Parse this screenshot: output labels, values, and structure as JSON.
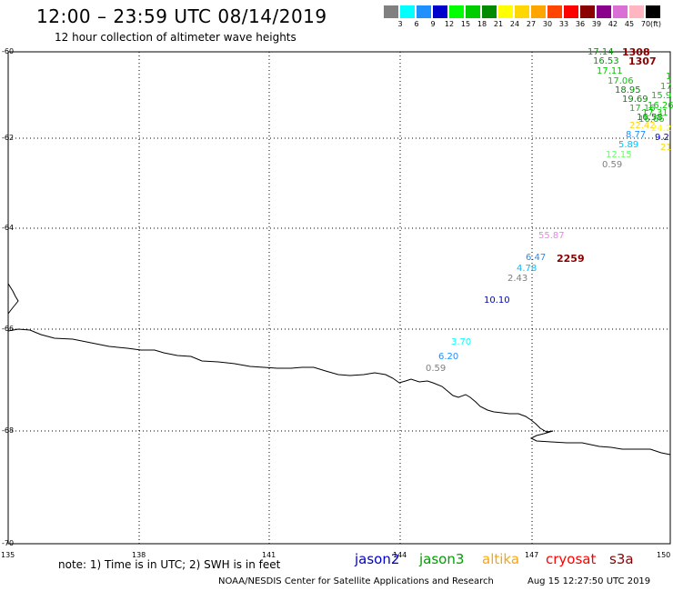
{
  "header": {
    "title": "12:00 – 23:59 UTC 08/14/2019",
    "subtitle": "12 hour collection of altimeter wave heights"
  },
  "legend": {
    "unit": "(ft)",
    "items": [
      {
        "label": "3",
        "color": "#808080"
      },
      {
        "label": "6",
        "color": "#00ffff"
      },
      {
        "label": "9",
        "color": "#1e90ff"
      },
      {
        "label": "12",
        "color": "#0000cd"
      },
      {
        "label": "15",
        "color": "#00ff00"
      },
      {
        "label": "18",
        "color": "#00cd00"
      },
      {
        "label": "21",
        "color": "#008b00"
      },
      {
        "label": "24",
        "color": "#ffff00"
      },
      {
        "label": "27",
        "color": "#ffd700"
      },
      {
        "label": "30",
        "color": "#ffa500"
      },
      {
        "label": "33",
        "color": "#ff4500"
      },
      {
        "label": "36",
        "color": "#ff0000"
      },
      {
        "label": "39",
        "color": "#8b0000"
      },
      {
        "label": "42",
        "color": "#8b008b"
      },
      {
        "label": "45",
        "color": "#da70d6"
      },
      {
        "label": "70",
        "color": "#ffb6c1"
      },
      {
        "label": "",
        "color": "#000000"
      }
    ]
  },
  "axes": {
    "lat_labels": [
      "-60",
      "-62",
      "-64",
      "-66",
      "-68",
      "-70"
    ],
    "lon_labels": [
      "135",
      "138",
      "141",
      "144",
      "147",
      "150"
    ]
  },
  "wave_heights": [
    {
      "text": "17.14",
      "color": "#00a000"
    },
    {
      "text": "1308",
      "color": "#8b0000",
      "big": true
    },
    {
      "text": "16.53",
      "color": "#00a000"
    },
    {
      "text": "1307",
      "color": "#8b0000",
      "big": true
    },
    {
      "text": "17.11",
      "color": "#00cd00"
    },
    {
      "text": "1",
      "color": "#00cd00"
    },
    {
      "text": "17.06",
      "color": "#00cd00"
    },
    {
      "text": "17.",
      "color": "#00cd00"
    },
    {
      "text": "18.95",
      "color": "#008b00"
    },
    {
      "text": "15.9",
      "color": "#00cd00"
    },
    {
      "text": "19.69",
      "color": "#008b00"
    },
    {
      "text": "16.26",
      "color": "#00cd00"
    },
    {
      "text": "17.16",
      "color": "#00cd00"
    },
    {
      "text": "17.31",
      "color": "#00cd00"
    },
    {
      "text": "16.58",
      "color": "#008b00"
    },
    {
      "text": "16.66",
      "color": "#00cd00"
    },
    {
      "text": "22.42",
      "color": "#ffd700"
    },
    {
      "text": "24.27",
      "color": "#ffff00"
    },
    {
      "text": "8.77",
      "color": "#1e90ff"
    },
    {
      "text": "9.2",
      "color": "#0000cd"
    },
    {
      "text": "21",
      "color": "#ffd700"
    },
    {
      "text": "5.89",
      "color": "#00bfff"
    },
    {
      "text": "12.15",
      "color": "#66ff66"
    },
    {
      "text": "0.59",
      "color": "#808080"
    },
    {
      "text": "55.87",
      "color": "#ee82ee"
    },
    {
      "text": "6.47",
      "color": "#1e90ff"
    },
    {
      "text": "2259",
      "color": "#8b0000",
      "big": true
    },
    {
      "text": "4.78",
      "color": "#00bfff"
    },
    {
      "text": "2.43",
      "color": "#808080"
    },
    {
      "text": "10.10",
      "color": "#0000cd"
    },
    {
      "text": "3.70",
      "color": "#00ffff"
    },
    {
      "text": "6.20",
      "color": "#1e90ff"
    },
    {
      "text": "0.59",
      "color": "#808080"
    }
  ],
  "footer": {
    "note": "note:  1) Time is in UTC;  2) SWH is in feet",
    "satellites": [
      {
        "name": "jason2",
        "color": "#0000cd"
      },
      {
        "name": "jason3",
        "color": "#00a000"
      },
      {
        "name": "altika",
        "color": "#ffa500"
      },
      {
        "name": "cryosat",
        "color": "#ff0000"
      },
      {
        "name": "s3a",
        "color": "#8b0000"
      }
    ],
    "credit": "NOAA/NESDIS Center for Satellite Applications and Research",
    "timestamp": "Aug 15 12:27:50 UTC 2019"
  }
}
